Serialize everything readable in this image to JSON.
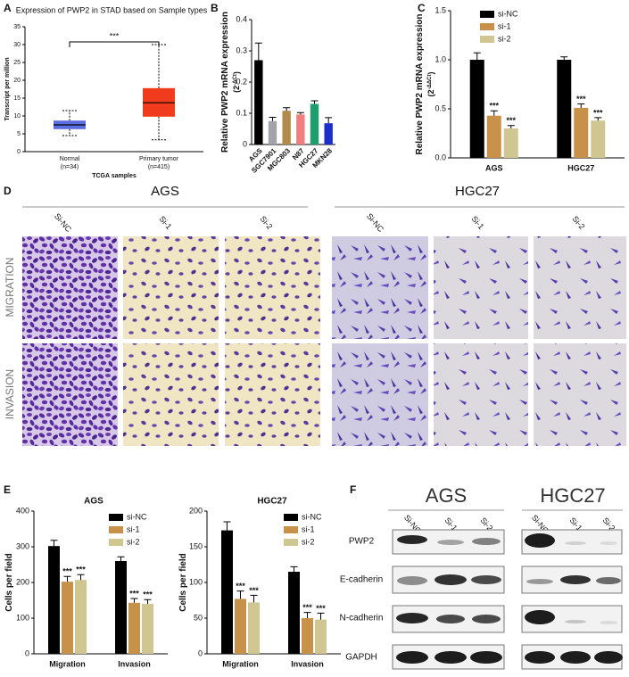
{
  "panel_labels": [
    "A",
    "B",
    "C",
    "D",
    "E",
    "F"
  ],
  "chart_data": [
    {
      "type": "box",
      "title": "Expression of PWP2 in STAD based on Sample types",
      "y_label": "Transcript per million",
      "x_label": "TCGA samples",
      "categories": [
        "Normal",
        "Primary tumor"
      ],
      "sample_sizes": [
        "(n=34)",
        "(n=415)"
      ],
      "boxes": [
        {
          "whisker_low": 4.5,
          "q1": 6.3,
          "median": 7.5,
          "q3": 8.7,
          "whisker_high": 11.5,
          "color": "#5b6ee1"
        },
        {
          "whisker_low": 3.3,
          "q1": 9.8,
          "median": 13.7,
          "q3": 17.8,
          "whisker_high": 30,
          "color": "#f03c1c"
        }
      ],
      "annotation": "***",
      "ylim": [
        0,
        35
      ],
      "yticks": [
        0,
        5,
        10,
        15,
        20,
        25,
        30,
        35
      ]
    },
    {
      "type": "bar",
      "y_label": "Relative PWP2 mRNA expression",
      "unit_base": "(2",
      "unit_exponent": "-ΔCt",
      "unit_close": ")",
      "categories": [
        "AGS",
        "SGC7901",
        "MGC803",
        "N87",
        "HGC27",
        "MKN28"
      ],
      "values": [
        0.27,
        0.075,
        0.108,
        0.096,
        0.13,
        0.068
      ],
      "errors": [
        0.055,
        0.012,
        0.01,
        0.006,
        0.01,
        0.018
      ],
      "colors": [
        "#000000",
        "#a3a3ad",
        "#b58b4c",
        "#f08080",
        "#1e9e6e",
        "#1a2ec8"
      ],
      "ylim": [
        0,
        0.4
      ],
      "yticks": [
        0,
        0.1,
        0.2,
        0.3,
        0.4
      ]
    },
    {
      "type": "grouped_bar",
      "y_label": "Relative PWP2 mRNA expression",
      "unit_base": "(2",
      "unit_exponent": "-ΔΔCt",
      "unit_close": ")",
      "categories": [
        "AGS",
        "HGC27"
      ],
      "series": [
        {
          "name": "si-NC",
          "color": "#000000",
          "values": [
            1.0,
            1.0
          ],
          "errors": [
            0.07,
            0.03
          ]
        },
        {
          "name": "si-1",
          "color": "#c8914a",
          "values": [
            0.43,
            0.51
          ],
          "errors": [
            0.05,
            0.04
          ],
          "significance": [
            "***",
            "***"
          ]
        },
        {
          "name": "si-2",
          "color": "#cfc692",
          "values": [
            0.3,
            0.38
          ],
          "errors": [
            0.03,
            0.03
          ],
          "significance": [
            "***",
            "***"
          ]
        }
      ],
      "ylim": [
        0,
        1.5
      ],
      "yticks": [
        {
          "value": 0,
          "label": "0.0"
        },
        0.5,
        {
          "value": 1,
          "label": "1.0"
        },
        1.5
      ]
    },
    {
      "type": "grouped_bar",
      "title": "AGS",
      "y_label": "Cells per field",
      "categories": [
        "Migration",
        "Invasion"
      ],
      "series": [
        {
          "name": "si-NC",
          "color": "#000000",
          "values": [
            302,
            260
          ],
          "errors": [
            16,
            12
          ]
        },
        {
          "name": "si-1",
          "color": "#c8914a",
          "values": [
            202,
            143
          ],
          "errors": [
            15,
            12
          ],
          "significance": [
            "***",
            "***"
          ]
        },
        {
          "name": "si-2",
          "color": "#cfc692",
          "values": [
            207,
            140
          ],
          "errors": [
            15,
            12
          ],
          "significance": [
            "***",
            "***"
          ]
        }
      ],
      "ylim": [
        0,
        400
      ],
      "yticks": [
        0,
        100,
        200,
        300,
        400
      ]
    },
    {
      "type": "grouped_bar",
      "title": "HGC27",
      "y_label": "Cells per field",
      "categories": [
        "Migration",
        "Invasion"
      ],
      "series": [
        {
          "name": "si-NC",
          "color": "#000000",
          "values": [
            173,
            115
          ],
          "errors": [
            12,
            7
          ]
        },
        {
          "name": "si-1",
          "color": "#c8914a",
          "values": [
            77,
            50
          ],
          "errors": [
            11,
            8
          ],
          "significance": [
            "***",
            "***"
          ]
        },
        {
          "name": "si-2",
          "color": "#cfc692",
          "values": [
            72,
            48
          ],
          "errors": [
            10,
            9
          ],
          "significance": [
            "***",
            "***"
          ]
        }
      ],
      "ylim": [
        0,
        200
      ],
      "yticks": [
        0,
        50,
        100,
        150,
        200
      ]
    }
  ],
  "micrographs": {
    "cell_lines": [
      "AGS",
      "HGC27"
    ],
    "conditions": [
      "Si-NC",
      "Si-1",
      "Si-2"
    ],
    "assays": [
      "MIGRATION",
      "INVASION"
    ]
  },
  "western_blot": {
    "cell_lines": [
      "AGS",
      "HGC27"
    ],
    "lanes": [
      "Si-NC",
      "Si-1",
      "Si-2"
    ],
    "proteins": [
      "PWP2",
      "E-cadherin",
      "N-cadherin",
      "GAPDH"
    ]
  }
}
